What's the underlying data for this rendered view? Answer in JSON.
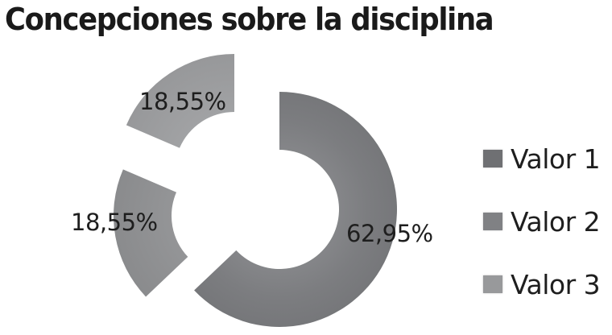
{
  "chart_data": {
    "type": "pie",
    "variant": "doughnut-exploded",
    "title": "Concepciones sobre la disciplina",
    "categories": [
      "Valor 1",
      "Valor 2",
      "Valor 3"
    ],
    "values": [
      62.95,
      18.55,
      18.55
    ],
    "value_labels": [
      "62,95%",
      "18,55%",
      "18,55%"
    ],
    "colors": [
      "#7c7d80",
      "#8e8f91",
      "#9d9ea0"
    ],
    "legend_position": "right",
    "xlabel": "",
    "ylabel": ""
  },
  "title": "Concepciones sobre la disciplina",
  "legend": {
    "items": [
      {
        "label": "Valor 1",
        "color": "#6f7073"
      },
      {
        "label": "Valor 2",
        "color": "#808184"
      },
      {
        "label": "Valor 3",
        "color": "#98999b"
      }
    ]
  },
  "labels": {
    "valor1": "62,95%",
    "valor2": "18,55%",
    "valor3": "18,55%"
  }
}
